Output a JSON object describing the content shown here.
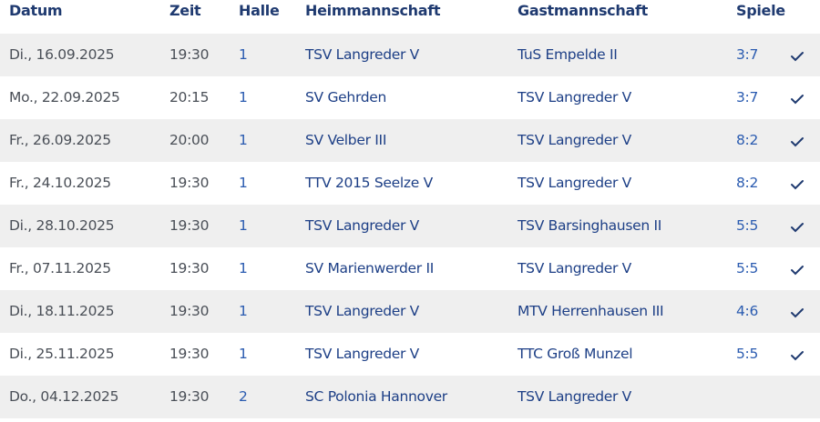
{
  "table": {
    "columns": [
      "Datum",
      "Zeit",
      "Halle",
      "Heimmannschaft",
      "Gastmannschaft",
      "Spiele"
    ],
    "rows": [
      [
        "Di., 16.09.2025",
        "19:30",
        "1",
        "TSV Langreder V",
        "TuS Empelde II",
        "3:7"
      ],
      [
        "Mo., 22.09.2025",
        "20:15",
        "1",
        "SV Gehrden",
        "TSV Langreder V",
        "3:7"
      ],
      [
        "Fr., 26.09.2025",
        "20:00",
        "1",
        "SV Velber III",
        "TSV Langreder V",
        "8:2"
      ],
      [
        "Fr., 24.10.2025",
        "19:30",
        "1",
        "TTV 2015 Seelze V",
        "TSV Langreder V",
        "8:2"
      ],
      [
        "Di., 28.10.2025",
        "19:30",
        "1",
        "TSV Langreder V",
        "TSV Barsinghausen II",
        "5:5"
      ],
      [
        "Fr., 07.11.2025",
        "19:30",
        "1",
        "SV Marienwerder II",
        "TSV Langreder V",
        "5:5"
      ],
      [
        "Di., 18.11.2025",
        "19:30",
        "1",
        "TSV Langreder V",
        "MTV Herrenhausen III",
        "4:6"
      ],
      [
        "Di., 25.11.2025",
        "19:30",
        "1",
        "TSV Langreder V",
        "TTC Groß Munzel",
        "5:5"
      ],
      [
        "Do., 04.12.2025",
        "19:30",
        "2",
        "SC Polonia Hannover",
        "TSV Langreder V",
        null
      ]
    ]
  }
}
